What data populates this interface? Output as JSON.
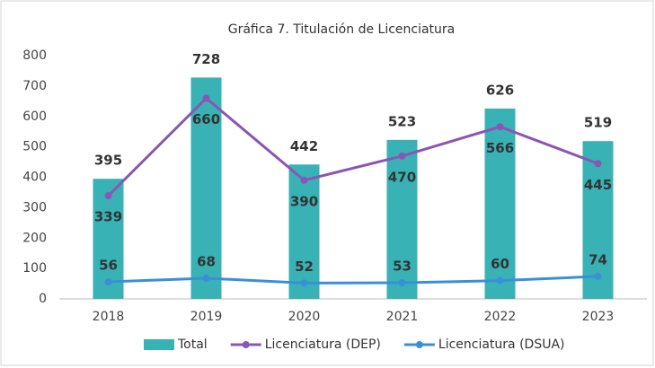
{
  "chart_data": {
    "type": "bar",
    "title": "Gráfica 7. Titulación de Licenciatura",
    "categories": [
      "2018",
      "2019",
      "2020",
      "2021",
      "2022",
      "2023"
    ],
    "series": [
      {
        "name": "Total",
        "type": "bar",
        "color": "#38b2b5",
        "values": [
          395,
          728,
          442,
          523,
          626,
          519
        ]
      },
      {
        "name": "Licenciatura (DEP)",
        "type": "line",
        "color": "#8a56b6",
        "values": [
          339,
          660,
          390,
          470,
          566,
          445
        ]
      },
      {
        "name": "Licenciatura (DSUA)",
        "type": "line",
        "color": "#3b8fd9",
        "values": [
          56,
          68,
          52,
          53,
          60,
          74
        ]
      }
    ],
    "ylim": [
      0,
      800
    ],
    "yticks": [
      0,
      100,
      200,
      300,
      400,
      500,
      600,
      700,
      800
    ],
    "grid": false,
    "legend": "bottom"
  }
}
